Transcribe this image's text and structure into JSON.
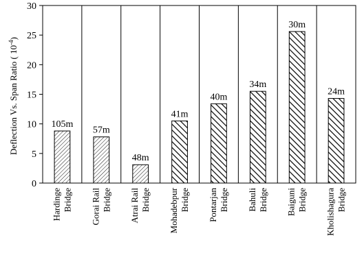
{
  "chart_data": {
    "type": "bar",
    "title": "",
    "xlabel": "",
    "ylabel": "Deflection Vs. Span Ratio ( 10",
    "ylabel_exponent": "-4",
    "ylabel_close": ")",
    "ylim": [
      0,
      30
    ],
    "yticks": [
      "0",
      "5",
      "10",
      "15",
      "20",
      "25",
      "30"
    ],
    "grid": "vertical lines between categories",
    "categories": [
      [
        "Hardinge",
        "Bridge"
      ],
      [
        "Gorai Rail",
        "Bridge"
      ],
      [
        "Atrai Rail",
        "Bridge"
      ],
      [
        "Mohadebpur",
        "Bridge"
      ],
      [
        "Pontarjan",
        "Bridge"
      ],
      [
        "Bahuli",
        "Bridge"
      ],
      [
        "Baiguni",
        "Bridge"
      ],
      [
        "Kholishagura",
        "Bridge"
      ]
    ],
    "values": [
      8.8,
      7.8,
      3.1,
      10.5,
      13.4,
      15.5,
      25.6,
      14.3
    ],
    "span_labels": [
      "105m",
      "57m",
      "48m",
      "41m",
      "40m",
      "34m",
      "30m",
      "24m"
    ],
    "bar_patterns": [
      "light-hatch",
      "light-hatch",
      "light-hatch",
      "heavy-hatch",
      "heavy-hatch",
      "heavy-hatch",
      "heavy-hatch",
      "heavy-hatch"
    ],
    "colors": {
      "bar_fill": "#ffffff",
      "hatch": "#000000",
      "axis": "#000000"
    }
  }
}
